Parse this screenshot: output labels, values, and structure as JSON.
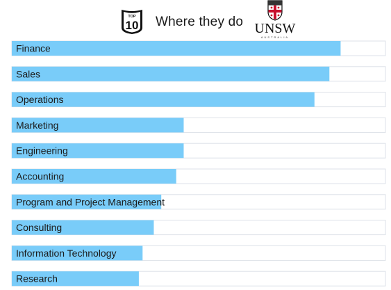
{
  "header": {
    "badge_top": "TOP",
    "badge_number": "10",
    "title": "Where they do",
    "logo_text": "UNSW",
    "logo_subtext": "AUSTRALIA"
  },
  "colors": {
    "bar": "#79ccf9",
    "track_border": "#dde2e8",
    "track_fill": "#ffffff",
    "label": "#1b1b1b"
  },
  "chart_data": {
    "type": "bar",
    "orientation": "horizontal",
    "title": "",
    "xlabel": "",
    "ylabel": "",
    "xlim": [
      0,
      100
    ],
    "grid": false,
    "categories": [
      "Finance",
      "Sales",
      "Operations",
      "Marketing",
      "Engineering",
      "Accounting",
      "Program and Project Management",
      "Consulting",
      "Information Technology",
      "Research"
    ],
    "values": [
      88,
      85,
      81,
      46,
      46,
      44,
      40,
      38,
      35,
      34
    ]
  }
}
